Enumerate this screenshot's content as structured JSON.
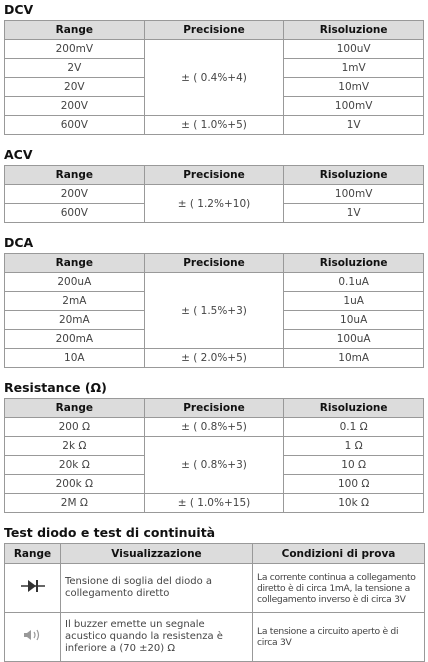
{
  "sections": [
    {
      "title": "DCV",
      "headers": [
        "Range",
        "Precisione",
        "Risoluzione"
      ],
      "groups": [
        {
          "precision": "± ( 0.4%+4)",
          "ranges": [
            "200mV",
            "2V",
            "20V",
            "200V"
          ],
          "resolutions": [
            "100uV",
            "1mV",
            "10mV",
            "100mV"
          ]
        },
        {
          "precision": "± ( 1.0%+5)",
          "ranges": [
            "600V"
          ],
          "resolutions": [
            "1V"
          ]
        }
      ]
    },
    {
      "title": "ACV",
      "headers": [
        "Range",
        "Precisione",
        "Risoluzione"
      ],
      "groups": [
        {
          "precision": "± ( 1.2%+10)",
          "ranges": [
            "200V",
            "600V"
          ],
          "resolutions": [
            "100mV",
            "1V"
          ]
        }
      ]
    },
    {
      "title": "DCA",
      "headers": [
        "Range",
        "Precisione",
        "Risoluzione"
      ],
      "groups": [
        {
          "precision": "± ( 1.5%+3)",
          "ranges": [
            "200uA",
            "2mA",
            "20mA",
            "200mA"
          ],
          "resolutions": [
            "0.1uA",
            "1uA",
            "10uA",
            "100uA"
          ]
        },
        {
          "precision": "± ( 2.0%+5)",
          "ranges": [
            "10A"
          ],
          "resolutions": [
            "10mA"
          ]
        }
      ]
    },
    {
      "title": "Resistance (Ω)",
      "headers": [
        "Range",
        "Precisione",
        "Risoluzione"
      ],
      "groups": [
        {
          "precision": "± ( 0.8%+5)",
          "ranges": [
            "200 Ω"
          ],
          "resolutions": [
            "0.1 Ω"
          ]
        },
        {
          "precision": "± ( 0.8%+3)",
          "ranges": [
            "2k Ω",
            "20k Ω",
            "200k Ω"
          ],
          "resolutions": [
            "1 Ω",
            "10 Ω",
            "100 Ω"
          ]
        },
        {
          "precision": "± ( 1.0%+15)",
          "ranges": [
            "2M Ω"
          ],
          "resolutions": [
            "10k Ω"
          ]
        }
      ]
    }
  ],
  "test": {
    "title": "Test diodo e test di continuità",
    "headers": [
      "Range",
      "Visualizzazione",
      "Condizioni di prova"
    ],
    "rows": [
      {
        "display": "Tensione di soglia del diodo a collegamento diretto",
        "conditions": "La corrente continua a collegamento diretto è di circa 1mA, la tensione a collegamento inverso è di circa 3V"
      },
      {
        "display": "Il buzzer emette un segnale acustico quando la resistenza è inferiore a (70 ±20) Ω",
        "conditions": "La tensione a circuito aperto è di circa 3V"
      }
    ]
  }
}
